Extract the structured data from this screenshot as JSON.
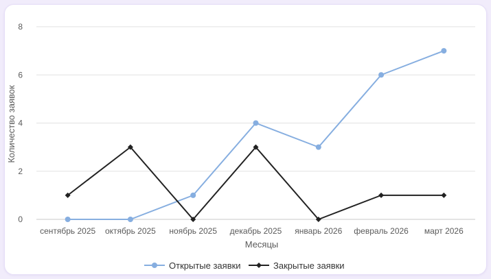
{
  "chart_data": {
    "type": "line",
    "title": "",
    "xlabel": "Месяцы",
    "ylabel": "Количество заявок",
    "categories": [
      "сентябрь 2025",
      "октябрь 2025",
      "ноябрь 2025",
      "декабрь 2025",
      "январь 2026",
      "февраль 2026",
      "март 2026"
    ],
    "ylim": [
      0,
      8
    ],
    "yticks": [
      "0",
      "2",
      "4",
      "6",
      "8"
    ],
    "grid": true,
    "legend_position": "bottom",
    "series": [
      {
        "name": "Открытые заявки",
        "values": [
          0,
          0,
          1,
          4,
          3,
          6,
          7
        ],
        "color": "#86aee0",
        "marker": "circle"
      },
      {
        "name": "Закрытые заявки",
        "values": [
          1,
          3,
          0,
          3,
          0,
          1,
          1
        ],
        "color": "#222222",
        "marker": "diamond"
      }
    ]
  }
}
